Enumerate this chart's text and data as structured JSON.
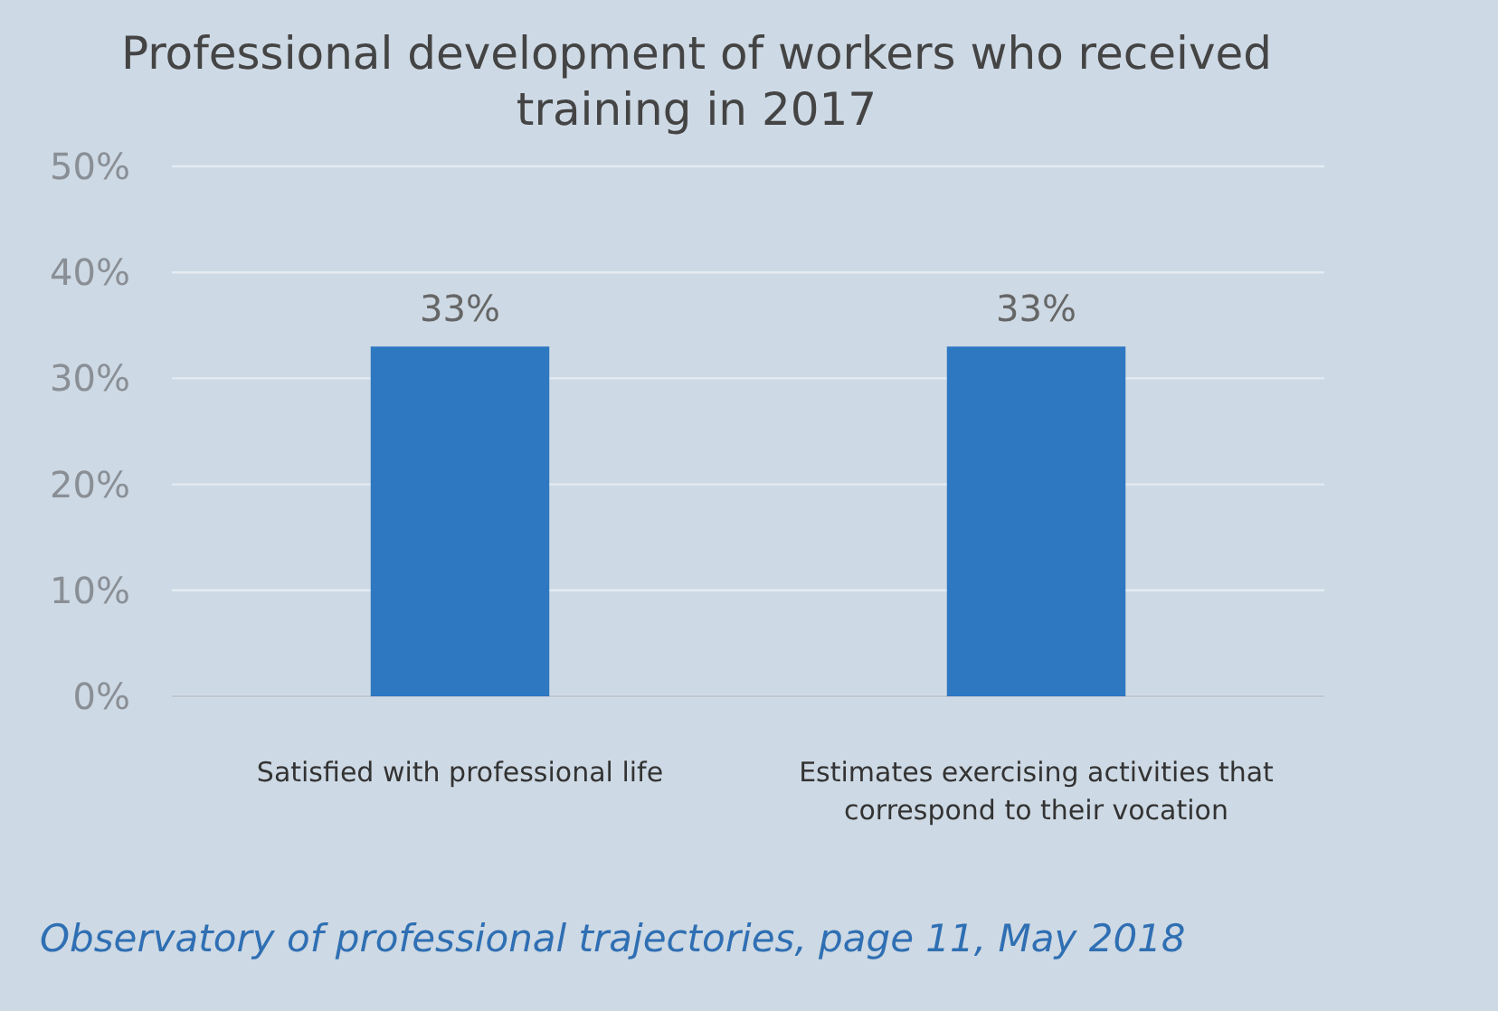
{
  "chart_data": {
    "type": "bar",
    "title": "Professional development of workers who received training in 2017",
    "categories": [
      "Satisfied with professional life",
      "Estimates exercising activities that correspond to their vocation"
    ],
    "values": [
      33,
      33
    ],
    "color": "#2e78c2",
    "ylim": [
      0,
      50
    ],
    "yticks": [
      {
        "value": 0,
        "label": "0%"
      },
      {
        "value": 10,
        "label": "10%"
      },
      {
        "value": 20,
        "label": "20%"
      },
      {
        "value": 30,
        "label": "30%"
      },
      {
        "value": 40,
        "label": "40%"
      },
      {
        "value": 50,
        "label": "50%"
      }
    ],
    "grid": "y",
    "value_labels": [
      "33%",
      "33%"
    ],
    "annotations": [
      "Observatory of professional trajectories, page 11, May 2018"
    ]
  }
}
